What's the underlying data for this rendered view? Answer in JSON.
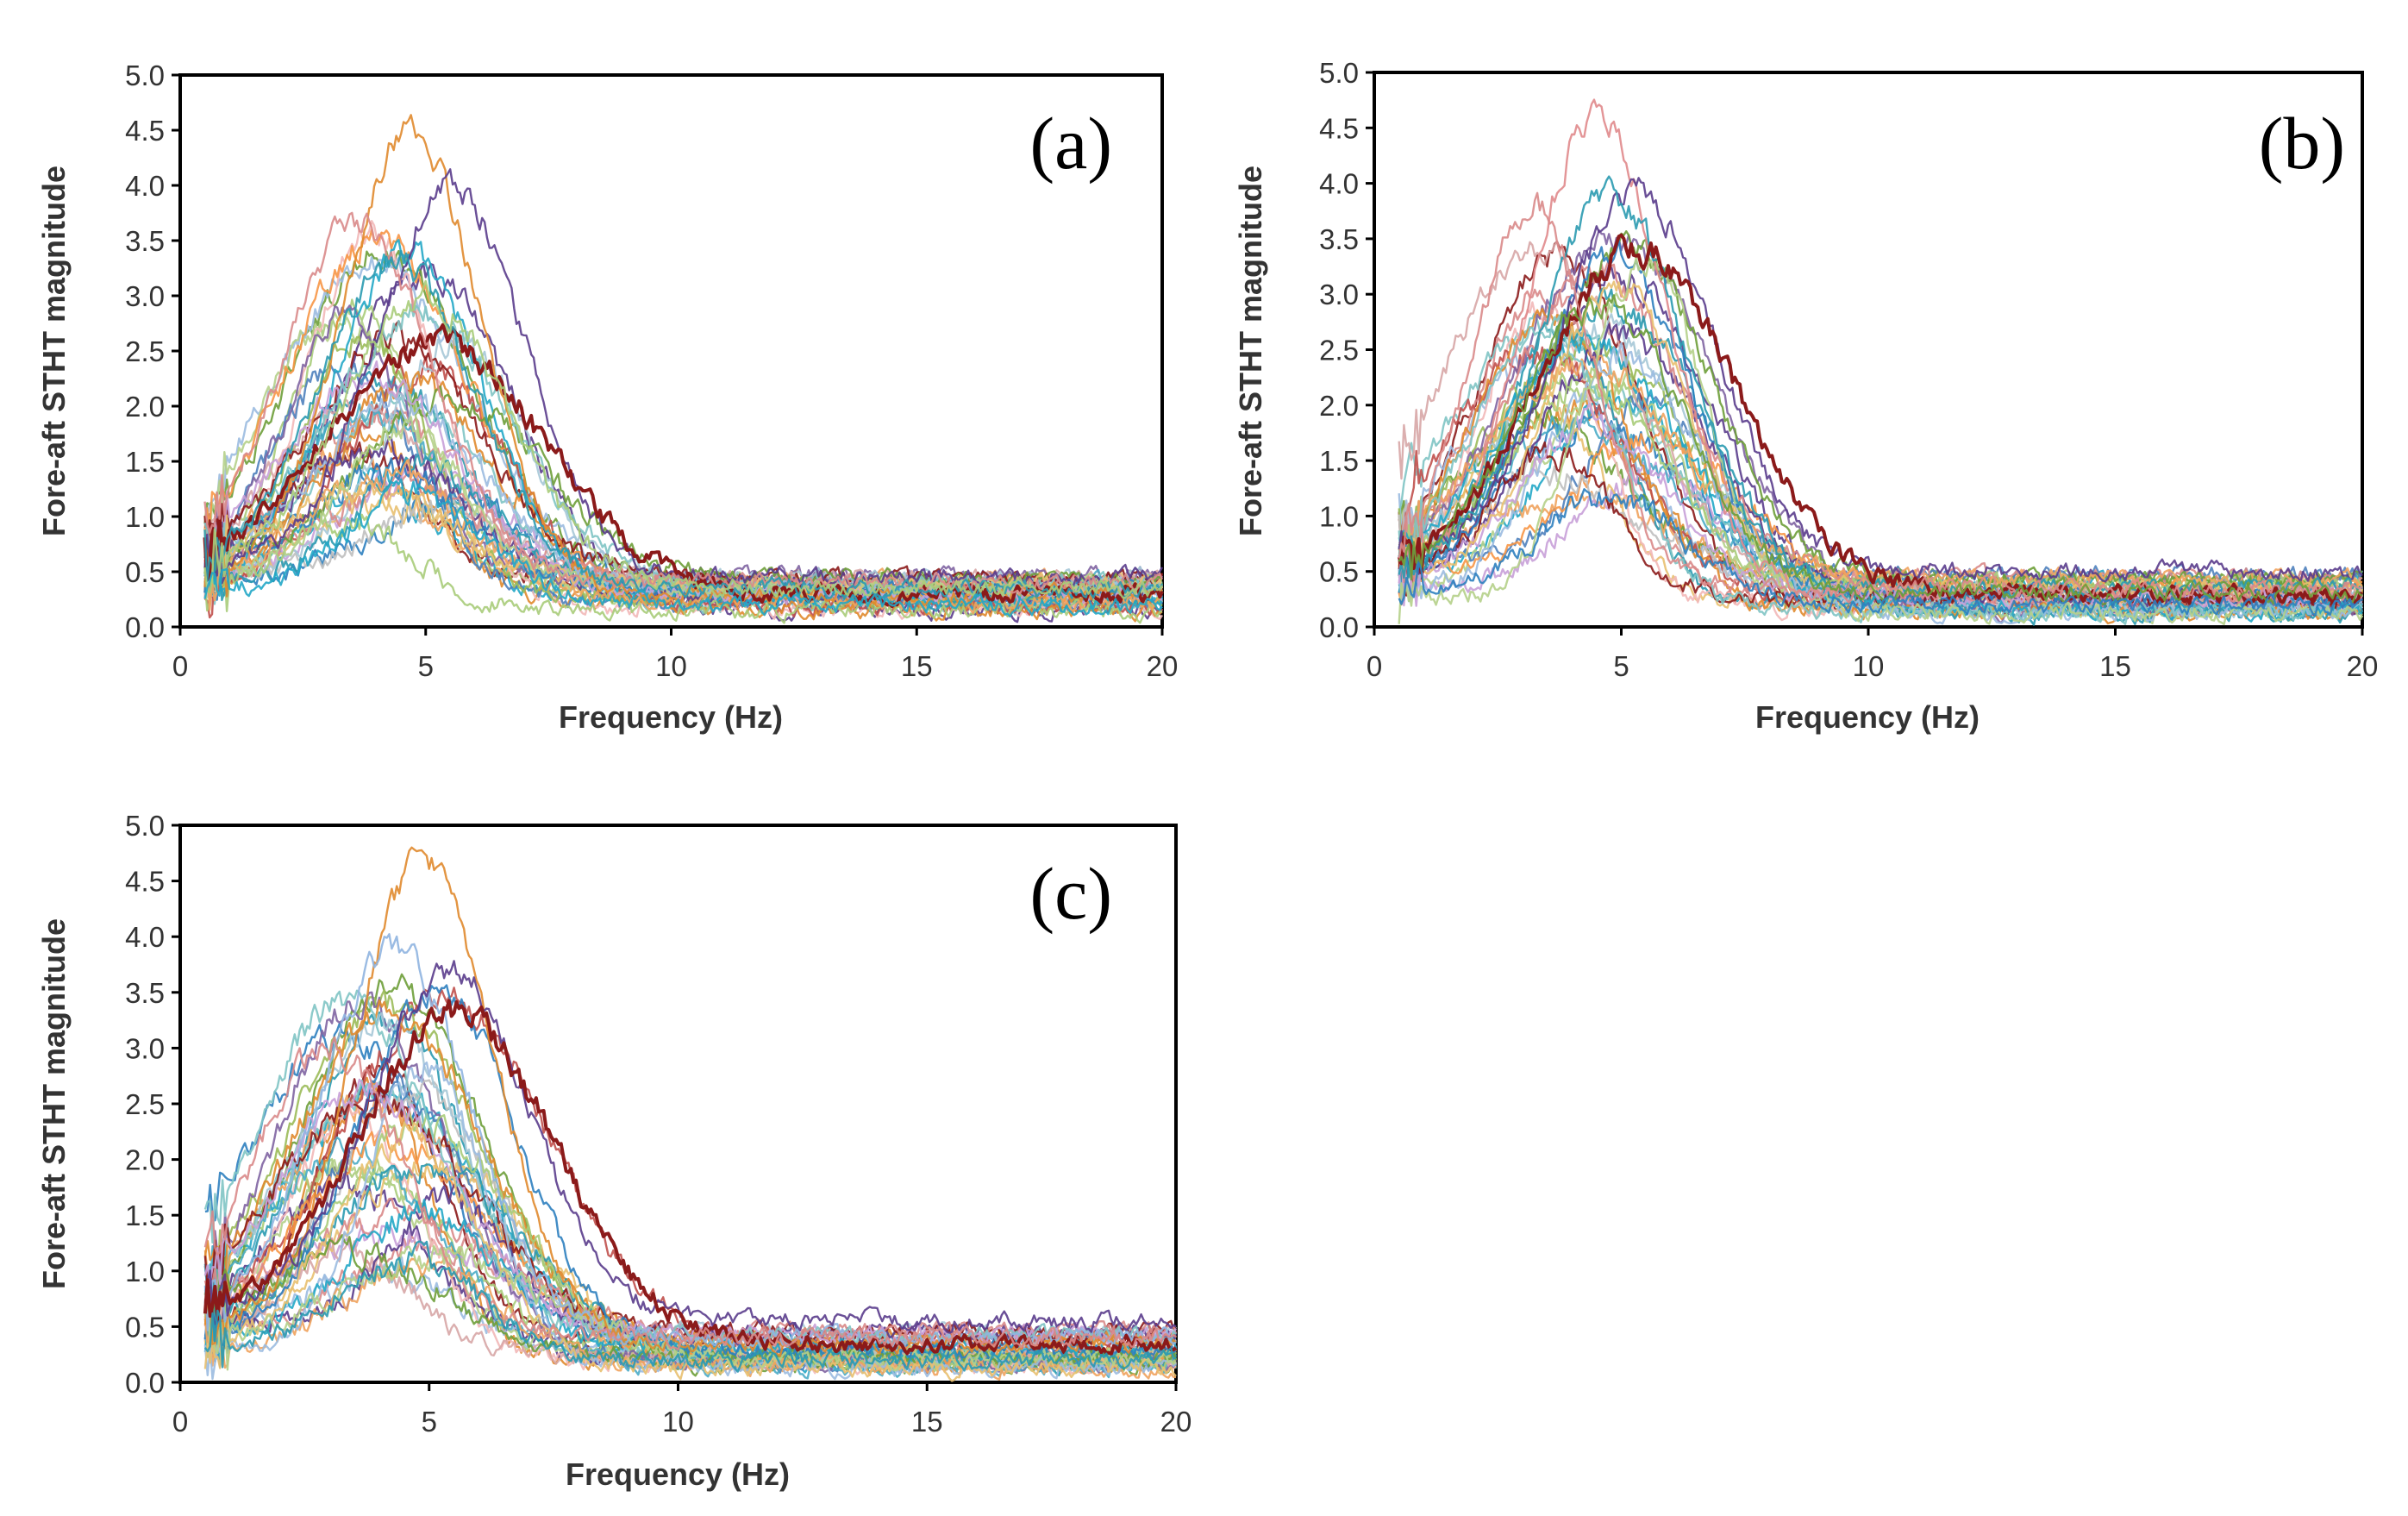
{
  "chart_data": [
    {
      "id": "panel-a",
      "type": "line",
      "panel_label": "(a)",
      "xlabel": "Frequency (Hz)",
      "ylabel": "Fore-aft  STHT magnitude",
      "xlim": [
        0,
        20
      ],
      "ylim": [
        0,
        5
      ],
      "xticks": [
        0,
        5,
        10,
        15,
        20
      ],
      "yticks": [
        "0.0",
        "0.5",
        "1.0",
        "1.5",
        "2.0",
        "2.5",
        "3.0",
        "3.5",
        "4.0",
        "4.5",
        "5.0"
      ],
      "x_start": 0.5,
      "series_count": 40,
      "seed": 11,
      "series": [
        {
          "name": "orange",
          "color": "#e08a2e",
          "peak_x": 4.7,
          "peak_y": 4.5,
          "tail": 0.3,
          "width": 1.4
        },
        {
          "name": "purple",
          "color": "#5a3c8c",
          "peak_x": 5.5,
          "peak_y": 4.0,
          "tail": 0.45,
          "width": 1.5
        },
        {
          "name": "dark-red-mean",
          "color": "#8b1a1a",
          "peak_x": 5.2,
          "peak_y": 2.6,
          "tail": 0.3,
          "width": 2.2,
          "bold": true
        },
        {
          "name": "pink",
          "color": "#d98a8a",
          "peak_x": 3.6,
          "peak_y": 3.7,
          "tail": 0.4,
          "width": 1.5
        },
        {
          "name": "teal",
          "color": "#2a9ab0",
          "peak_x": 4.4,
          "peak_y": 3.3,
          "tail": 0.35,
          "width": 1.6
        },
        {
          "name": "light-green",
          "color": "#a8cc7a",
          "peak_x": 5.0,
          "peak_y": 3.0,
          "tail": 0.35,
          "width": 1.7
        },
        {
          "name": "cyan-low",
          "color": "#22a7c7",
          "peak_x": 4.8,
          "peak_y": 1.2,
          "tail": 0.2,
          "width": 1.4
        }
      ]
    },
    {
      "id": "panel-b",
      "type": "line",
      "panel_label": "(b)",
      "xlabel": "Frequency (Hz)",
      "ylabel": "Fore-aft  STHT magnitude",
      "xlim": [
        0,
        20
      ],
      "ylim": [
        0,
        5
      ],
      "xticks": [
        0,
        5,
        10,
        15,
        20
      ],
      "yticks": [
        "0.0",
        "0.5",
        "1.0",
        "1.5",
        "2.0",
        "2.5",
        "3.0",
        "3.5",
        "4.0",
        "4.5",
        "5.0"
      ],
      "x_start": 0.5,
      "series_count": 40,
      "seed": 23,
      "series": [
        {
          "name": "rose",
          "color": "#e0898c",
          "peak_x": 4.5,
          "peak_y": 4.6,
          "tail": 0.3,
          "width": 1.4
        },
        {
          "name": "purple",
          "color": "#5a3c8c",
          "peak_x": 5.3,
          "peak_y": 3.9,
          "tail": 0.5,
          "width": 1.6
        },
        {
          "name": "teal",
          "color": "#2a9ab0",
          "peak_x": 4.8,
          "peak_y": 3.9,
          "tail": 0.35,
          "width": 1.5
        },
        {
          "name": "dark-red-mean",
          "color": "#8b1a1a",
          "peak_x": 5.3,
          "peak_y": 3.4,
          "tail": 0.3,
          "width": 2.0,
          "bold": true
        },
        {
          "name": "pink-early",
          "color": "#d98a8a",
          "peak_x": 3.2,
          "peak_y": 3.8,
          "tail": 0.35,
          "width": 1.2
        },
        {
          "name": "green",
          "color": "#6e9e3a",
          "peak_x": 4.6,
          "peak_y": 2.9,
          "tail": 0.3,
          "width": 1.7
        },
        {
          "name": "blue-low",
          "color": "#2e7fbf",
          "peak_x": 4.8,
          "peak_y": 1.2,
          "tail": 0.2,
          "width": 1.4
        }
      ]
    },
    {
      "id": "panel-c",
      "type": "line",
      "panel_label": "(c)",
      "xlabel": "Frequency (Hz)",
      "ylabel": "Fore-aft  STHT magnitude",
      "xlim": [
        0,
        20
      ],
      "ylim": [
        0,
        5
      ],
      "xticks": [
        0,
        5,
        10,
        15,
        20
      ],
      "yticks": [
        "0.0",
        "0.5",
        "1.0",
        "1.5",
        "2.0",
        "2.5",
        "3.0",
        "3.5",
        "4.0",
        "4.5",
        "5.0"
      ],
      "x_start": 0.5,
      "series_count": 40,
      "seed": 37,
      "series": [
        {
          "name": "orange",
          "color": "#e08a2e",
          "peak_x": 4.9,
          "peak_y": 4.7,
          "tail": 0.35,
          "width": 1.4
        },
        {
          "name": "light-blue",
          "color": "#8fb4e0",
          "peak_x": 4.3,
          "peak_y": 3.9,
          "tail": 0.4,
          "width": 1.5
        },
        {
          "name": "purple",
          "color": "#5a3c8c",
          "peak_x": 5.4,
          "peak_y": 3.7,
          "tail": 0.55,
          "width": 1.6
        },
        {
          "name": "dark-red-mean",
          "color": "#8b1a1a",
          "peak_x": 5.5,
          "peak_y": 3.3,
          "tail": 0.35,
          "width": 2.0,
          "bold": true
        },
        {
          "name": "pink",
          "color": "#d98a8a",
          "peak_x": 3.0,
          "peak_y": 3.0,
          "tail": 0.4,
          "width": 1.5
        },
        {
          "name": "teal-low",
          "color": "#2a9ab0",
          "peak_x": 4.6,
          "peak_y": 1.1,
          "tail": 0.2,
          "width": 1.4
        }
      ]
    }
  ],
  "palette": [
    "#e08a2e",
    "#5a3c8c",
    "#8b1a1a",
    "#d98a8a",
    "#2a9ab0",
    "#a8cc7a",
    "#22a7c7",
    "#6e9e3a",
    "#2e7fbf",
    "#f0a35e",
    "#9bbbe0",
    "#c8a0d8",
    "#7fc4c4",
    "#e8c070",
    "#b5d08a",
    "#f2b8b8",
    "#4f81bd",
    "#c0504d",
    "#9bbb59",
    "#8064a2",
    "#4bacc6",
    "#f79646",
    "#bfbfbf",
    "#d7a6a6",
    "#a6c8d7"
  ]
}
